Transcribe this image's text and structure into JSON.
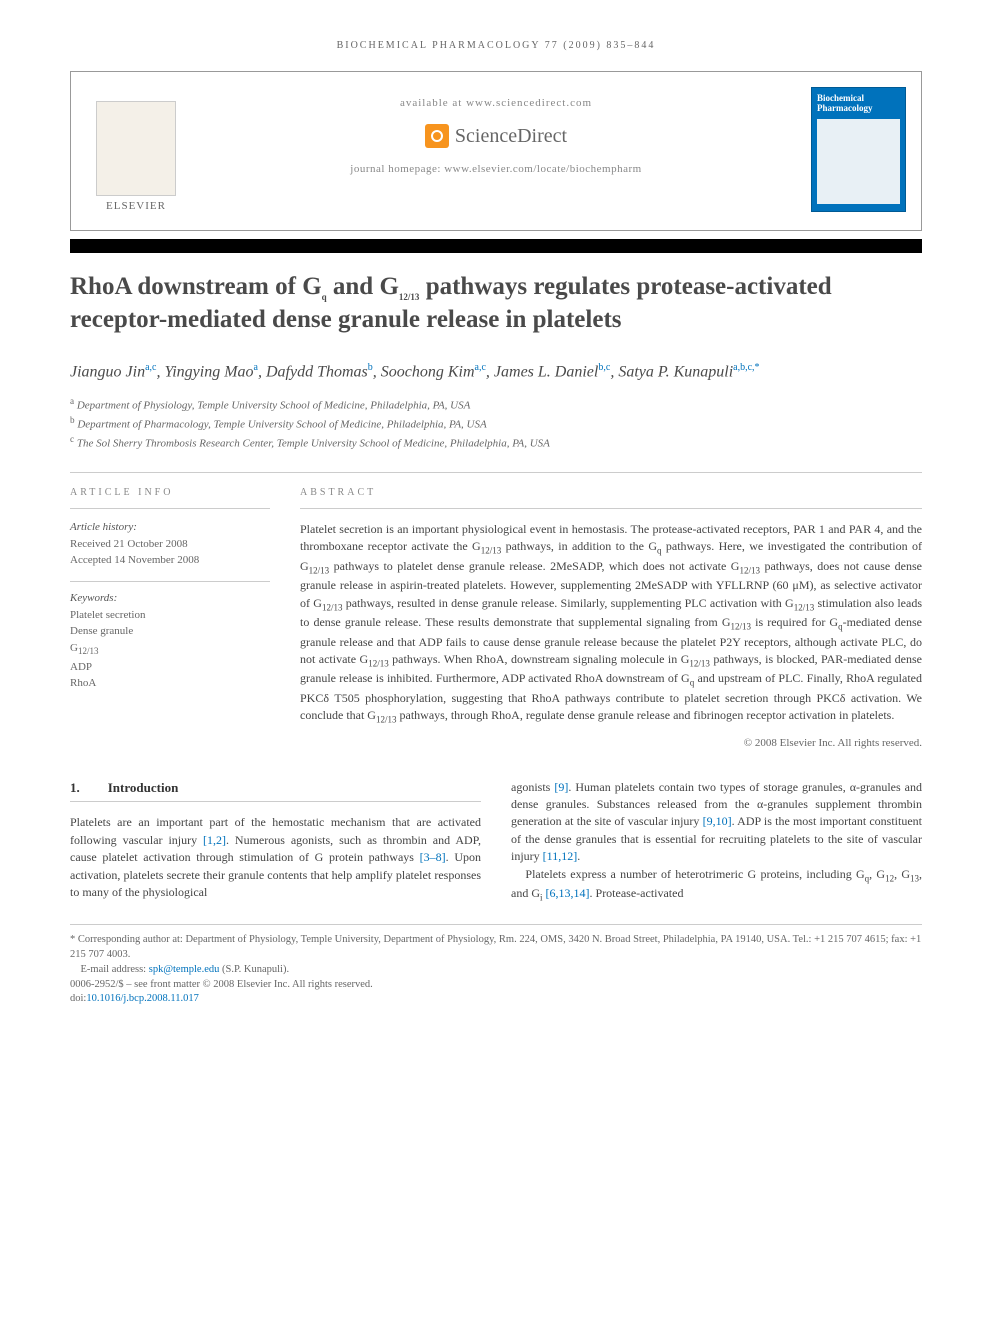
{
  "running_head": "BIOCHEMICAL PHARMACOLOGY 77 (2009) 835–844",
  "header": {
    "available": "available at www.sciencedirect.com",
    "sd_brand": "ScienceDirect",
    "homepage": "journal homepage: www.elsevier.com/locate/biochempharm",
    "elsevier": "ELSEVIER",
    "journal_cover": "Biochemical Pharmacology"
  },
  "title": "RhoA downstream of Gq and G12/13 pathways regulates protease-activated receptor-mediated dense granule release in platelets",
  "authors_html": "Jianguo Jin<sup class='link'>a,c</sup>, Yingying Mao<sup class='link'>a</sup>, Dafydd Thomas<sup class='link'>b</sup>, Soochong Kim<sup class='link'>a,c</sup>, James L. Daniel<sup class='link'>b,c</sup>, Satya P. Kunapuli<sup class='link'>a,b,c,*</sup>",
  "affiliations": [
    "a Department of Physiology, Temple University School of Medicine, Philadelphia, PA, USA",
    "b Department of Pharmacology, Temple University School of Medicine, Philadelphia, PA, USA",
    "c The Sol Sherry Thrombosis Research Center, Temple University School of Medicine, Philadelphia, PA, USA"
  ],
  "article_info": {
    "head": "ARTICLE INFO",
    "history_label": "Article history:",
    "received": "Received 21 October 2008",
    "accepted": "Accepted 14 November 2008",
    "keywords_label": "Keywords:",
    "keywords": [
      "Platelet secretion",
      "Dense granule",
      "G12/13",
      "ADP",
      "RhoA"
    ]
  },
  "abstract": {
    "head": "ABSTRACT",
    "text": "Platelet secretion is an important physiological event in hemostasis. The protease-activated receptors, PAR 1 and PAR 4, and the thromboxane receptor activate the G12/13 pathways, in addition to the Gq pathways. Here, we investigated the contribution of G12/13 pathways to platelet dense granule release. 2MeSADP, which does not activate G12/13 pathways, does not cause dense granule release in aspirin-treated platelets. However, supplementing 2MeSADP with YFLLRNP (60 μM), as selective activator of G12/13 pathways, resulted in dense granule release. Similarly, supplementing PLC activation with G12/13 stimulation also leads to dense granule release. These results demonstrate that supplemental signaling from G12/13 is required for Gq-mediated dense granule release and that ADP fails to cause dense granule release because the platelet P2Y receptors, although activate PLC, do not activate G12/13 pathways. When RhoA, downstream signaling molecule in G12/13 pathways, is blocked, PAR-mediated dense granule release is inhibited. Furthermore, ADP activated RhoA downstream of Gq and upstream of PLC. Finally, RhoA regulated PKCδ T505 phosphorylation, suggesting that RhoA pathways contribute to platelet secretion through PKCδ activation. We conclude that G12/13 pathways, through RhoA, regulate dense granule release and fibrinogen receptor activation in platelets.",
    "copyright": "© 2008 Elsevier Inc. All rights reserved."
  },
  "section1": {
    "num": "1.",
    "title": "Introduction"
  },
  "body": {
    "col1": "Platelets are an important part of the hemostatic mechanism that are activated following vascular injury [1,2]. Numerous agonists, such as thrombin and ADP, cause platelet activation through stimulation of G protein pathways [3–8]. Upon activation, platelets secrete their granule contents that help amplify platelet responses to many of the physiological",
    "col2a": "agonists [9]. Human platelets contain two types of storage granules, α-granules and dense granules. Substances released from the α-granules supplement thrombin generation at the site of vascular injury [9,10]. ADP is the most important constituent of the dense granules that is essential for recruiting platelets to the site of vascular injury [11,12].",
    "col2b": "Platelets express a number of heterotrimeric G proteins, including Gq, G12, G13, and Gi [6,13,14]. Protease-activated"
  },
  "footer": {
    "corresponding": "* Corresponding author at: Department of Physiology, Temple University, Department of Physiology, Rm. 224, OMS, 3420 N. Broad Street, Philadelphia, PA 19140, USA. Tel.: +1 215 707 4615; fax: +1 215 707 4003.",
    "email_label": "E-mail address:",
    "email": "spk@temple.edu",
    "email_name": "(S.P. Kunapuli).",
    "issn": "0006-2952/$ – see front matter © 2008 Elsevier Inc. All rights reserved.",
    "doi": "doi:10.1016/j.bcp.2008.11.017"
  },
  "colors": {
    "link": "#0072bc",
    "text": "#444444",
    "muted": "#666666",
    "rule": "#cccccc",
    "orange": "#f7941e",
    "black": "#000000",
    "bg": "#ffffff"
  },
  "typography": {
    "body_pt": 12,
    "title_pt": 25,
    "authors_pt": 16,
    "small_pt": 11,
    "running_pt": 10
  }
}
